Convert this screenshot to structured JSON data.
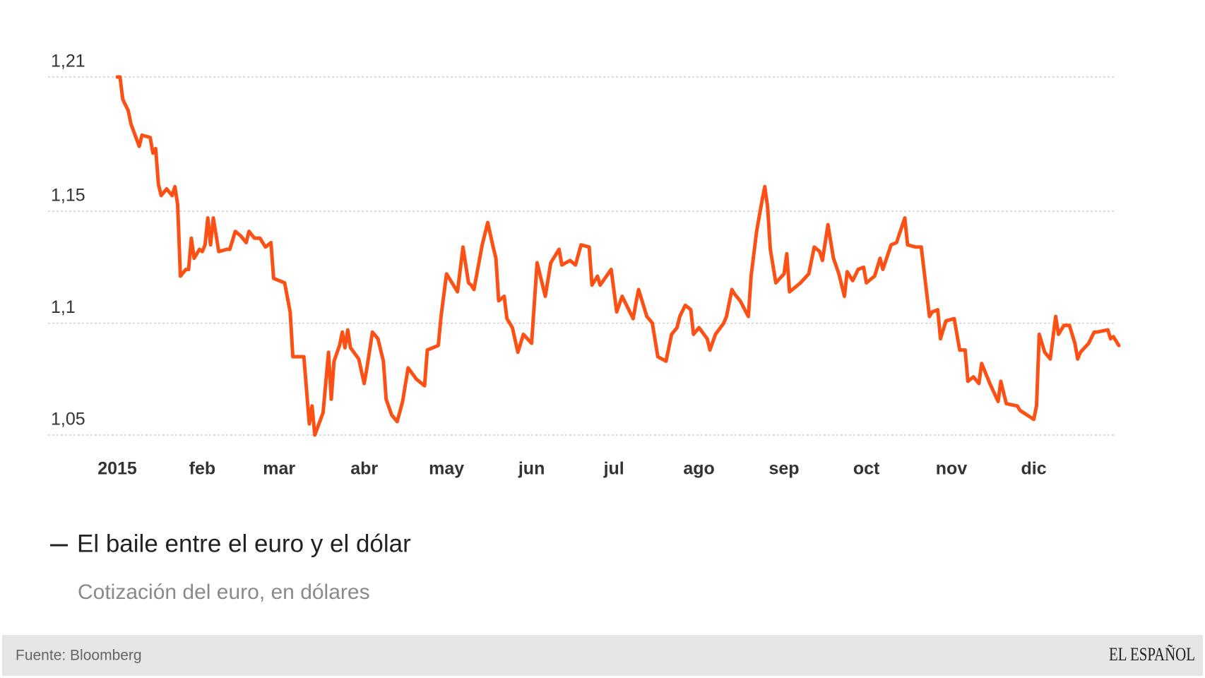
{
  "chart_data": {
    "type": "line",
    "title": "El baile entre el euro y el dólar",
    "subtitle": "Cotización del euro, en dólares",
    "xlim": [
      0,
      365
    ],
    "xticks": [
      {
        "value": 0,
        "label": "2015"
      },
      {
        "value": 31,
        "label": "feb"
      },
      {
        "value": 59,
        "label": "mar"
      },
      {
        "value": 90,
        "label": "abr"
      },
      {
        "value": 120,
        "label": "may"
      },
      {
        "value": 151,
        "label": "jun"
      },
      {
        "value": 181,
        "label": "jul"
      },
      {
        "value": 212,
        "label": "ago"
      },
      {
        "value": 243,
        "label": "sep"
      },
      {
        "value": 273,
        "label": "oct"
      },
      {
        "value": 304,
        "label": "nov"
      },
      {
        "value": 334,
        "label": "dic"
      }
    ],
    "ylim": [
      1.05,
      1.21
    ],
    "yticks": [
      {
        "value": 1.05,
        "label": "1,05"
      },
      {
        "value": 1.1,
        "label": "1,1"
      },
      {
        "value": 1.15,
        "label": "1,15"
      },
      {
        "value": 1.21,
        "label": "1,21"
      }
    ],
    "grid": true,
    "x": [
      0,
      1,
      2,
      4,
      5,
      8,
      9,
      12,
      13,
      14,
      15,
      16,
      18,
      20,
      21,
      22,
      23,
      25,
      26,
      27,
      28,
      30,
      31,
      32,
      33,
      34,
      35,
      37,
      40,
      41,
      43,
      45,
      47,
      48,
      50,
      52,
      54,
      56,
      57,
      61,
      63,
      64,
      68,
      70,
      71,
      72,
      75,
      77,
      78,
      79,
      81,
      82,
      83,
      84,
      85,
      88,
      90,
      91,
      93,
      95,
      97,
      98,
      100,
      102,
      104,
      106,
      109,
      112,
      113,
      117,
      118,
      120,
      122,
      124,
      126,
      128,
      129,
      130,
      133,
      135,
      137,
      138,
      139,
      141,
      142,
      144,
      146,
      148,
      151,
      153,
      156,
      158,
      160,
      161,
      162,
      165,
      167,
      169,
      172,
      173,
      175,
      176,
      180,
      182,
      184,
      186,
      188,
      189,
      190,
      193,
      195,
      197,
      200,
      202,
      204,
      205,
      207,
      209,
      210,
      212,
      215,
      216,
      218,
      221,
      222,
      224,
      225,
      227,
      230,
      231,
      233,
      235,
      236,
      237,
      238,
      240,
      243,
      244,
      245,
      247,
      249,
      252,
      254,
      256,
      257,
      259,
      261,
      263,
      265,
      266,
      268,
      270,
      272,
      273,
      276,
      278,
      279,
      282,
      284,
      287,
      288,
      291,
      293,
      296,
      297,
      299,
      300,
      302,
      305,
      307,
      309,
      310,
      312,
      314,
      315,
      318,
      321,
      322,
      324,
      328,
      329,
      334,
      335,
      336,
      338,
      340,
      342,
      343,
      345,
      347,
      349,
      350,
      351,
      354,
      356,
      357,
      361,
      362,
      363,
      365
    ],
    "series": [
      {
        "color": "#fd5014",
        "values": [
          1.21,
          1.21,
          1.2,
          1.195,
          1.189,
          1.179,
          1.184,
          1.183,
          1.176,
          1.178,
          1.162,
          1.157,
          1.16,
          1.157,
          1.161,
          1.153,
          1.121,
          1.124,
          1.124,
          1.138,
          1.129,
          1.133,
          1.132,
          1.135,
          1.147,
          1.135,
          1.147,
          1.132,
          1.133,
          1.133,
          1.141,
          1.139,
          1.136,
          1.141,
          1.138,
          1.138,
          1.134,
          1.136,
          1.12,
          1.118,
          1.105,
          1.085,
          1.085,
          1.055,
          1.063,
          1.05,
          1.06,
          1.087,
          1.066,
          1.083,
          1.09,
          1.096,
          1.089,
          1.097,
          1.089,
          1.084,
          1.073,
          1.08,
          1.096,
          1.093,
          1.083,
          1.066,
          1.059,
          1.056,
          1.065,
          1.08,
          1.075,
          1.072,
          1.088,
          1.09,
          1.103,
          1.122,
          1.118,
          1.114,
          1.134,
          1.118,
          1.117,
          1.115,
          1.135,
          1.145,
          1.134,
          1.129,
          1.11,
          1.112,
          1.102,
          1.098,
          1.087,
          1.095,
          1.091,
          1.127,
          1.112,
          1.127,
          1.131,
          1.133,
          1.126,
          1.128,
          1.126,
          1.135,
          1.134,
          1.117,
          1.121,
          1.117,
          1.124,
          1.105,
          1.112,
          1.107,
          1.102,
          1.109,
          1.115,
          1.103,
          1.1,
          1.085,
          1.083,
          1.095,
          1.098,
          1.103,
          1.108,
          1.106,
          1.095,
          1.098,
          1.093,
          1.088,
          1.095,
          1.1,
          1.103,
          1.115,
          1.113,
          1.11,
          1.103,
          1.121,
          1.141,
          1.155,
          1.161,
          1.152,
          1.133,
          1.118,
          1.122,
          1.131,
          1.114,
          1.116,
          1.118,
          1.122,
          1.134,
          1.132,
          1.128,
          1.144,
          1.129,
          1.122,
          1.112,
          1.123,
          1.119,
          1.124,
          1.125,
          1.118,
          1.121,
          1.129,
          1.124,
          1.135,
          1.136,
          1.147,
          1.135,
          1.134,
          1.134,
          1.103,
          1.105,
          1.106,
          1.093,
          1.101,
          1.102,
          1.088,
          1.088,
          1.074,
          1.076,
          1.073,
          1.082,
          1.073,
          1.065,
          1.074,
          1.064,
          1.063,
          1.061,
          1.057,
          1.063,
          1.095,
          1.087,
          1.084,
          1.103,
          1.095,
          1.099,
          1.099,
          1.091,
          1.084,
          1.087,
          1.091,
          1.096,
          1.096,
          1.097,
          1.093,
          1.094,
          1.09
        ]
      }
    ]
  },
  "footer": {
    "source": "Fuente: Bloomberg",
    "brand": "EL ESPAÑOL"
  }
}
